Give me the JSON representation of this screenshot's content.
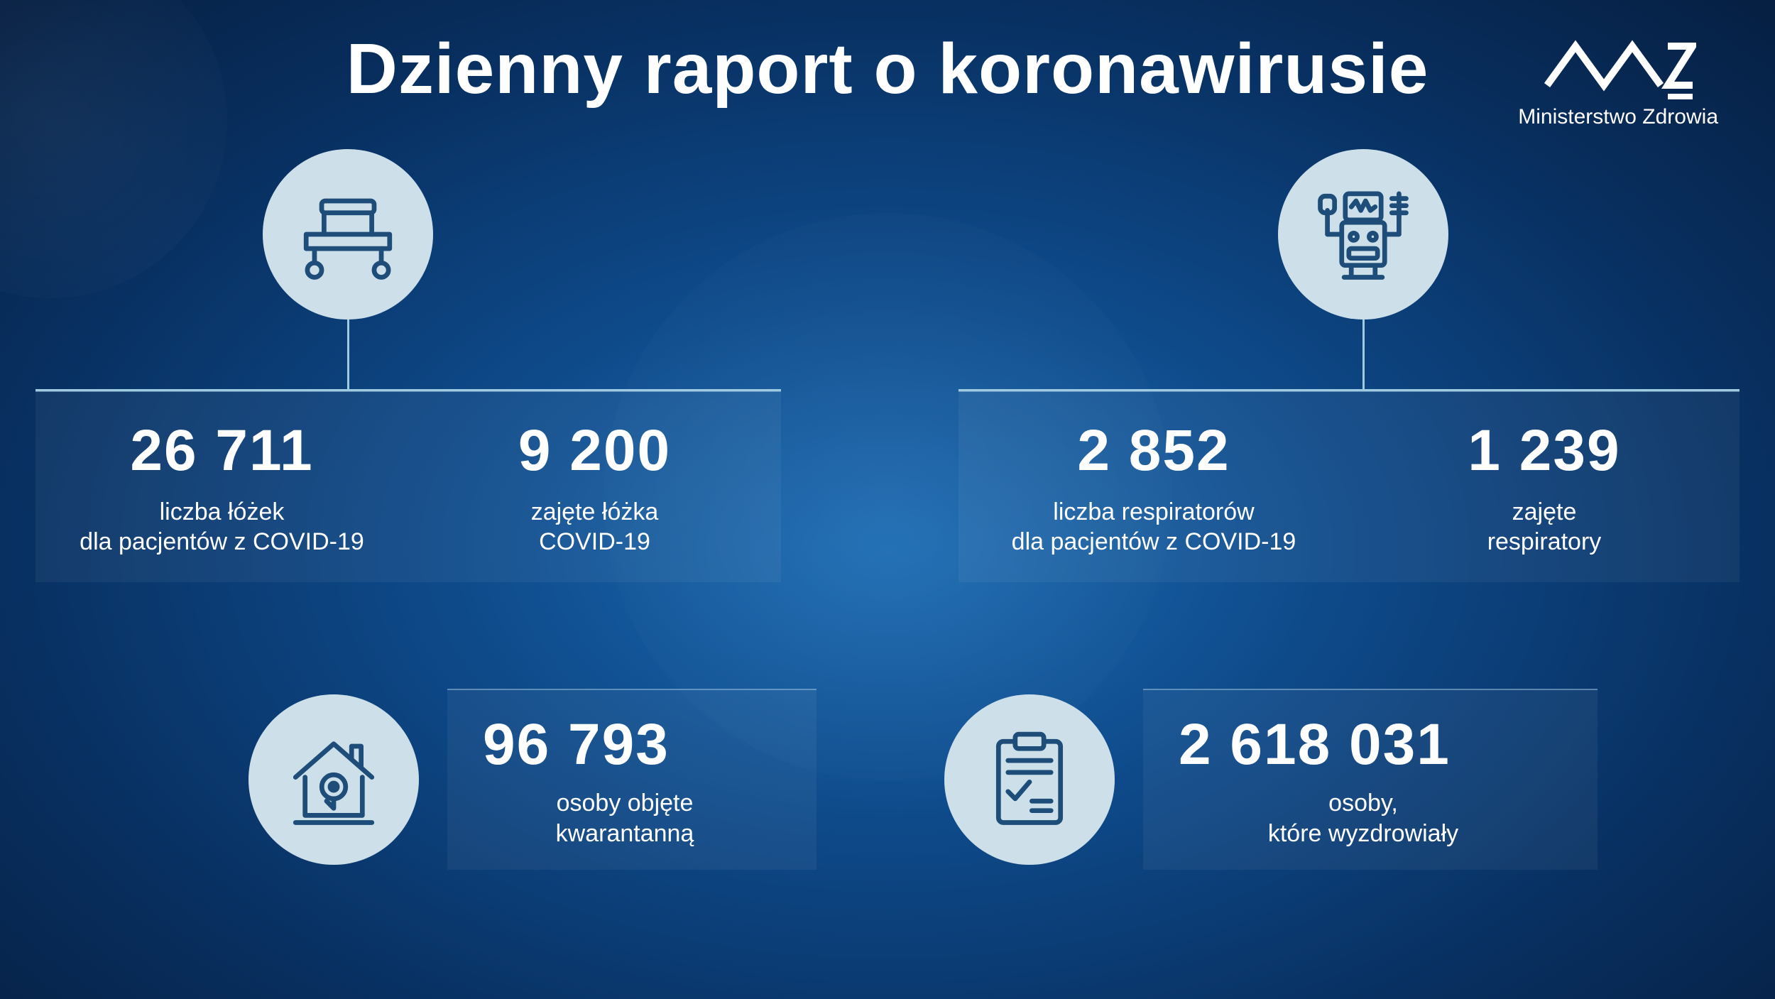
{
  "title": "Dzienny raport o koronawirusie",
  "brand": "Ministerstwo Zdrowia",
  "colors": {
    "icon_fill": "#cde0e9",
    "icon_stroke": "#1d4d78",
    "connector": "#9fcbe0"
  },
  "top_left": {
    "icon": "hospital-bed",
    "left_value": "26 711",
    "left_label": "liczba łóżek\ndla pacjentów z COVID-19",
    "right_value": "9 200",
    "right_label": "zajęte łóżka\nCOVID-19"
  },
  "top_right": {
    "icon": "ventilator",
    "left_value": "2 852",
    "left_label": "liczba respiratorów\ndla pacjentów z COVID-19",
    "right_value": "1 239",
    "right_label": "zajęte\nrespiratory"
  },
  "bottom_left": {
    "icon": "home-quarantine",
    "value": "96 793",
    "label": "osoby objęte\nkwarantanną"
  },
  "bottom_right": {
    "icon": "clipboard-check",
    "value": "2 618 031",
    "label": "osoby,\nktóre wyzdrowiały"
  }
}
